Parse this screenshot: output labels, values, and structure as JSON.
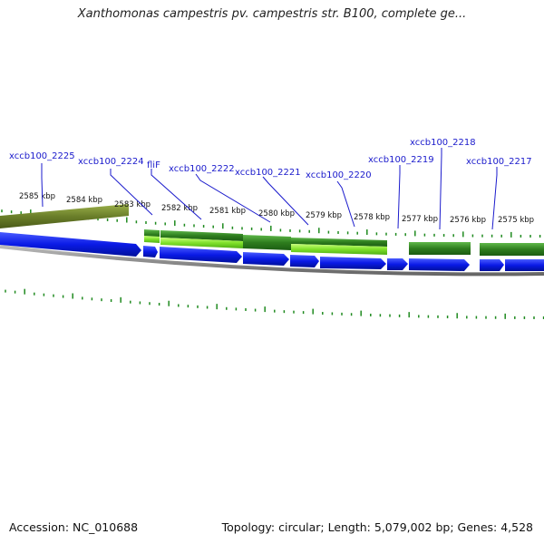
{
  "title": "Xanthomonas campestris pv. campestris str. B100, complete ge...",
  "footer": {
    "accession": "Accession: NC_010688",
    "summary": "Topology: circular; Length: 5,079,002 bp; Genes: 4,528"
  },
  "scale_labels": [
    "2585 kbp",
    "2584 kbp",
    "2583 kbp",
    "2582 kbp",
    "2581 kbp",
    "2580 kbp",
    "2579 kbp",
    "2578 kbp",
    "2577 kbp",
    "2576 kbp",
    "2575 kbp"
  ],
  "gene_labels": [
    "xccb100_2225",
    "xccb100_2224",
    "fliF",
    "xccb100_2222",
    "xccb100_2221",
    "xccb100_2220",
    "xccb100_2219",
    "xccb100_2218",
    "xccb100_2217"
  ],
  "colors": {
    "cds": "#0a1ae6",
    "feature_dark": "#2e7d1e",
    "feature_light": "#7fe02a",
    "feature_olive": "#6b7f2a",
    "tick": "#1f8a1f",
    "backbone": "#888888",
    "label": "#1a1acc"
  }
}
